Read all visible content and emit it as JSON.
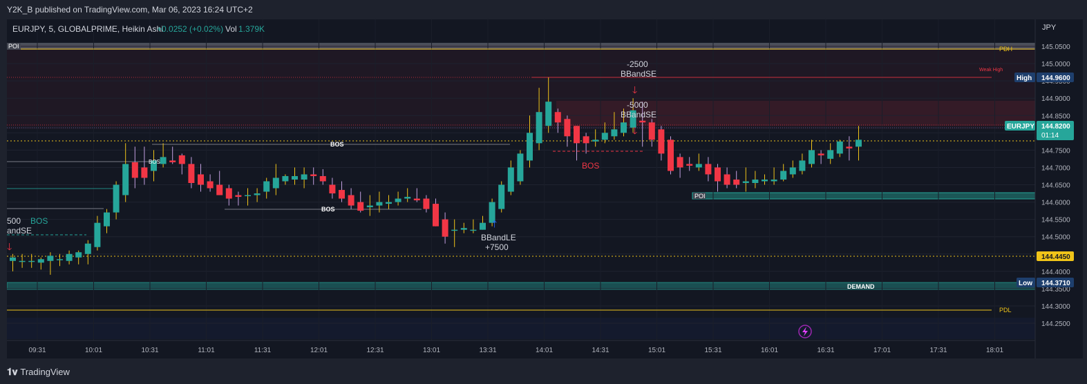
{
  "publish_info": "Y2K_B published on TradingView.com, Mar 06, 2023 16:24 UTC+2",
  "footer": {
    "brand": "TradingView"
  },
  "legend": {
    "symbol": "EURJPY, 5, GLOBALPRIME, Heikin Ashi",
    "change": "+0.0252 (+0.02%)",
    "vol_label": "Vol",
    "vol_value": "1.379K"
  },
  "currency": "JPY",
  "colors": {
    "up": "#26a69a",
    "down": "#f23645",
    "bg": "#131722",
    "gold": "#f0c419"
  },
  "price_badges": {
    "last": {
      "symbol": "EURJPY",
      "price": "144.8200",
      "countdown": "01:14"
    },
    "high": {
      "label": "High",
      "price": "144.9600"
    },
    "low": {
      "label": "Low",
      "price": "144.3710"
    },
    "level": {
      "price": "144.4450"
    }
  },
  "zone_labels": {
    "poi_top": "POI",
    "pdh": "PDH",
    "weak_high": "Weak High",
    "poi_right": "POI",
    "demand": "DEMAND",
    "pdl": "PDL"
  },
  "strategy_labels": {
    "left_signal": "500",
    "left_signal_name": "andSE",
    "le_name": "BBandLE",
    "le_qty": "+7500",
    "se1_qty": "-2500",
    "se1_name": "BBandSE",
    "se2_qty": "-5000",
    "se2_name": "BBandSE"
  },
  "structure_labels": {
    "bos_left": "BOS",
    "bos_top": "BOS",
    "bos_mid": "BOS",
    "bos_red": "BOS",
    "bos_small": "BOS"
  },
  "chart_data": {
    "type": "candlestick",
    "style": "Heikin Ashi",
    "interval": "5",
    "price_axis": {
      "ticks": [
        "145.0500",
        "145.0000",
        "144.9500",
        "144.9000",
        "144.8500",
        "144.8000",
        "144.7500",
        "144.7000",
        "144.6500",
        "144.6000",
        "144.5500",
        "144.5000",
        "144.4500",
        "144.4000",
        "144.3500",
        "144.3000",
        "144.2500"
      ],
      "range": [
        144.22,
        145.07
      ]
    },
    "time_axis": {
      "ticks": [
        "09:31",
        "10:01",
        "10:31",
        "11:01",
        "11:31",
        "12:01",
        "12:31",
        "13:01",
        "13:31",
        "14:01",
        "14:31",
        "15:01",
        "15:31",
        "16:01",
        "16:31",
        "17:01",
        "17:31",
        "18:01"
      ]
    },
    "candles": [
      {
        "o": 144.43,
        "h": 144.45,
        "l": 144.4,
        "c": 144.44
      },
      {
        "o": 144.43,
        "h": 144.45,
        "l": 144.41,
        "c": 144.43
      },
      {
        "o": 144.43,
        "h": 144.45,
        "l": 144.41,
        "c": 144.43
      },
      {
        "o": 144.425,
        "h": 144.44,
        "l": 144.405,
        "c": 144.435
      },
      {
        "o": 144.43,
        "h": 144.455,
        "l": 144.39,
        "c": 144.445
      },
      {
        "o": 144.435,
        "h": 144.45,
        "l": 144.415,
        "c": 144.435
      },
      {
        "o": 144.43,
        "h": 144.46,
        "l": 144.42,
        "c": 144.45
      },
      {
        "o": 144.44,
        "h": 144.46,
        "l": 144.42,
        "c": 144.455
      },
      {
        "o": 144.45,
        "h": 144.49,
        "l": 144.42,
        "c": 144.48
      },
      {
        "o": 144.47,
        "h": 144.56,
        "l": 144.46,
        "c": 144.54
      },
      {
        "o": 144.53,
        "h": 144.58,
        "l": 144.51,
        "c": 144.57
      },
      {
        "o": 144.57,
        "h": 144.66,
        "l": 144.55,
        "c": 144.65
      },
      {
        "o": 144.62,
        "h": 144.77,
        "l": 144.6,
        "c": 144.71
      },
      {
        "o": 144.715,
        "h": 144.76,
        "l": 144.64,
        "c": 144.67
      },
      {
        "o": 144.7,
        "h": 144.76,
        "l": 144.65,
        "c": 144.67
      },
      {
        "o": 144.69,
        "h": 144.75,
        "l": 144.66,
        "c": 144.72
      },
      {
        "o": 144.71,
        "h": 144.77,
        "l": 144.7,
        "c": 144.73
      },
      {
        "o": 144.72,
        "h": 144.76,
        "l": 144.71,
        "c": 144.715
      },
      {
        "o": 144.735,
        "h": 144.74,
        "l": 144.68,
        "c": 144.71
      },
      {
        "o": 144.71,
        "h": 144.73,
        "l": 144.64,
        "c": 144.655
      },
      {
        "o": 144.68,
        "h": 144.71,
        "l": 144.63,
        "c": 144.65
      },
      {
        "o": 144.66,
        "h": 144.68,
        "l": 144.63,
        "c": 144.64
      },
      {
        "o": 144.65,
        "h": 144.69,
        "l": 144.62,
        "c": 144.62
      },
      {
        "o": 144.64,
        "h": 144.65,
        "l": 144.59,
        "c": 144.61
      },
      {
        "o": 144.62,
        "h": 144.63,
        "l": 144.59,
        "c": 144.615
      },
      {
        "o": 144.62,
        "h": 144.64,
        "l": 144.59,
        "c": 144.62
      },
      {
        "o": 144.62,
        "h": 144.64,
        "l": 144.6,
        "c": 144.625
      },
      {
        "o": 144.63,
        "h": 144.67,
        "l": 144.61,
        "c": 144.66
      },
      {
        "o": 144.64,
        "h": 144.71,
        "l": 144.62,
        "c": 144.67
      },
      {
        "o": 144.66,
        "h": 144.68,
        "l": 144.65,
        "c": 144.675
      },
      {
        "o": 144.665,
        "h": 144.7,
        "l": 144.65,
        "c": 144.675
      },
      {
        "o": 144.665,
        "h": 144.7,
        "l": 144.64,
        "c": 144.68
      },
      {
        "o": 144.68,
        "h": 144.7,
        "l": 144.65,
        "c": 144.675
      },
      {
        "o": 144.675,
        "h": 144.695,
        "l": 144.65,
        "c": 144.66
      },
      {
        "o": 144.65,
        "h": 144.67,
        "l": 144.61,
        "c": 144.625
      },
      {
        "o": 144.635,
        "h": 144.66,
        "l": 144.6,
        "c": 144.61
      },
      {
        "o": 144.62,
        "h": 144.64,
        "l": 144.58,
        "c": 144.59
      },
      {
        "o": 144.6,
        "h": 144.63,
        "l": 144.57,
        "c": 144.575
      },
      {
        "o": 144.585,
        "h": 144.62,
        "l": 144.56,
        "c": 144.59
      },
      {
        "o": 144.59,
        "h": 144.63,
        "l": 144.57,
        "c": 144.6
      },
      {
        "o": 144.595,
        "h": 144.62,
        "l": 144.58,
        "c": 144.6
      },
      {
        "o": 144.6,
        "h": 144.63,
        "l": 144.59,
        "c": 144.61
      },
      {
        "o": 144.61,
        "h": 144.64,
        "l": 144.6,
        "c": 144.615
      },
      {
        "o": 144.61,
        "h": 144.64,
        "l": 144.6,
        "c": 144.605
      },
      {
        "o": 144.61,
        "h": 144.62,
        "l": 144.57,
        "c": 144.58
      },
      {
        "o": 144.595,
        "h": 144.61,
        "l": 144.53,
        "c": 144.53
      },
      {
        "o": 144.55,
        "h": 144.57,
        "l": 144.48,
        "c": 144.5
      },
      {
        "o": 144.52,
        "h": 144.55,
        "l": 144.47,
        "c": 144.52
      },
      {
        "o": 144.52,
        "h": 144.54,
        "l": 144.51,
        "c": 144.525
      },
      {
        "o": 144.52,
        "h": 144.55,
        "l": 144.51,
        "c": 144.52
      },
      {
        "o": 144.52,
        "h": 144.56,
        "l": 144.52,
        "c": 144.54
      },
      {
        "o": 144.54,
        "h": 144.61,
        "l": 144.53,
        "c": 144.6
      },
      {
        "o": 144.58,
        "h": 144.66,
        "l": 144.57,
        "c": 144.65
      },
      {
        "o": 144.63,
        "h": 144.72,
        "l": 144.62,
        "c": 144.7
      },
      {
        "o": 144.66,
        "h": 144.75,
        "l": 144.65,
        "c": 144.74
      },
      {
        "o": 144.72,
        "h": 144.85,
        "l": 144.7,
        "c": 144.8
      },
      {
        "o": 144.77,
        "h": 144.93,
        "l": 144.75,
        "c": 144.86
      },
      {
        "o": 144.82,
        "h": 144.96,
        "l": 144.8,
        "c": 144.89
      },
      {
        "o": 144.86,
        "h": 144.87,
        "l": 144.8,
        "c": 144.83
      },
      {
        "o": 144.84,
        "h": 144.85,
        "l": 144.76,
        "c": 144.79
      },
      {
        "o": 144.82,
        "h": 144.82,
        "l": 144.72,
        "c": 144.77
      },
      {
        "o": 144.79,
        "h": 144.8,
        "l": 144.74,
        "c": 144.77
      },
      {
        "o": 144.775,
        "h": 144.81,
        "l": 144.76,
        "c": 144.78
      },
      {
        "o": 144.78,
        "h": 144.83,
        "l": 144.77,
        "c": 144.8
      },
      {
        "o": 144.79,
        "h": 144.86,
        "l": 144.78,
        "c": 144.81
      },
      {
        "o": 144.8,
        "h": 144.87,
        "l": 144.79,
        "c": 144.83
      },
      {
        "o": 144.815,
        "h": 144.9,
        "l": 144.8,
        "c": 144.865
      },
      {
        "o": 144.835,
        "h": 144.89,
        "l": 144.76,
        "c": 144.83
      },
      {
        "o": 144.83,
        "h": 144.84,
        "l": 144.76,
        "c": 144.78
      },
      {
        "o": 144.81,
        "h": 144.82,
        "l": 144.72,
        "c": 144.74
      },
      {
        "o": 144.78,
        "h": 144.79,
        "l": 144.68,
        "c": 144.69
      },
      {
        "o": 144.73,
        "h": 144.74,
        "l": 144.67,
        "c": 144.7
      },
      {
        "o": 144.71,
        "h": 144.73,
        "l": 144.69,
        "c": 144.705
      },
      {
        "o": 144.7,
        "h": 144.74,
        "l": 144.69,
        "c": 144.71
      },
      {
        "o": 144.71,
        "h": 144.73,
        "l": 144.66,
        "c": 144.68
      },
      {
        "o": 144.7,
        "h": 144.71,
        "l": 144.63,
        "c": 144.66
      },
      {
        "o": 144.68,
        "h": 144.7,
        "l": 144.64,
        "c": 144.65
      },
      {
        "o": 144.665,
        "h": 144.69,
        "l": 144.64,
        "c": 144.65
      },
      {
        "o": 144.655,
        "h": 144.7,
        "l": 144.63,
        "c": 144.66
      },
      {
        "o": 144.655,
        "h": 144.69,
        "l": 144.64,
        "c": 144.665
      },
      {
        "o": 144.66,
        "h": 144.68,
        "l": 144.65,
        "c": 144.665
      },
      {
        "o": 144.66,
        "h": 144.7,
        "l": 144.65,
        "c": 144.665
      },
      {
        "o": 144.665,
        "h": 144.71,
        "l": 144.66,
        "c": 144.69
      },
      {
        "o": 144.68,
        "h": 144.72,
        "l": 144.67,
        "c": 144.7
      },
      {
        "o": 144.69,
        "h": 144.74,
        "l": 144.68,
        "c": 144.72
      },
      {
        "o": 144.71,
        "h": 144.78,
        "l": 144.7,
        "c": 144.75
      },
      {
        "o": 144.74,
        "h": 144.75,
        "l": 144.71,
        "c": 144.735
      },
      {
        "o": 144.725,
        "h": 144.77,
        "l": 144.71,
        "c": 144.75
      },
      {
        "o": 144.74,
        "h": 144.78,
        "l": 144.73,
        "c": 144.775
      },
      {
        "o": 144.76,
        "h": 144.79,
        "l": 144.72,
        "c": 144.755
      },
      {
        "o": 144.76,
        "h": 144.82,
        "l": 144.72,
        "c": 144.78
      }
    ],
    "levels": [
      {
        "name": "PDH",
        "price": 145.045,
        "color": "#f0c419"
      },
      {
        "name": "High",
        "price": 144.96,
        "color": "#f23645"
      },
      {
        "name": "Last",
        "price": 144.82,
        "color": "#f23645"
      },
      {
        "name": "Mid",
        "price": 144.775,
        "color": "#f0c419"
      },
      {
        "name": "Level",
        "price": 144.445,
        "color": "#f0c419"
      },
      {
        "name": "Low",
        "price": 144.371,
        "color": "#2962ff"
      },
      {
        "name": "PDL",
        "price": 144.29,
        "color": "#f0c419"
      }
    ]
  }
}
